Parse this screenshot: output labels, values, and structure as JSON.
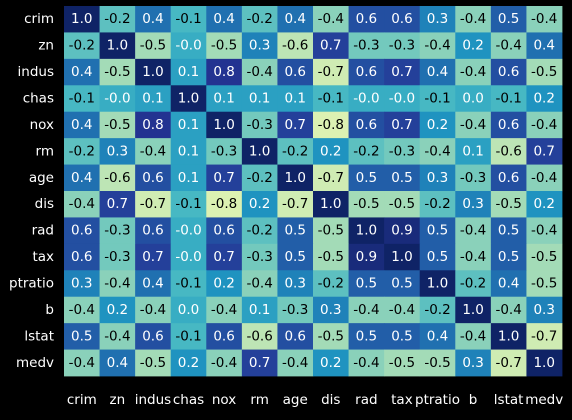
{
  "chart_data": {
    "type": "heatmap",
    "title": "",
    "xlabel": "",
    "ylabel": "",
    "x_tick_labels": [
      "crim",
      "zn",
      "indus",
      "chas",
      "nox",
      "rm",
      "age",
      "dis",
      "rad",
      "tax",
      "ptratio",
      "b",
      "lstat",
      "medv"
    ],
    "y_tick_labels": [
      "crim",
      "zn",
      "indus",
      "chas",
      "nox",
      "rm",
      "age",
      "dis",
      "rad",
      "tax",
      "ptratio",
      "b",
      "lstat",
      "medv"
    ],
    "annotation_precision": 1,
    "colorbar": false,
    "value_range": [
      -0.8,
      1.0
    ],
    "colormap": "YlGnBu",
    "colors": {
      "background": "#000000",
      "tick_text": "#ffffff",
      "annotation_text_dark_cells": "#ffffff",
      "annotation_text_light_cells": "#000000"
    },
    "matrix": [
      [
        1.0,
        -0.2,
        0.4,
        -0.1,
        0.4,
        -0.2,
        0.4,
        -0.4,
        0.6,
        0.6,
        0.3,
        -0.4,
        0.5,
        -0.4
      ],
      [
        -0.2,
        1.0,
        -0.5,
        -0.0,
        -0.5,
        0.3,
        -0.6,
        0.7,
        -0.3,
        -0.3,
        -0.4,
        0.2,
        -0.4,
        0.4
      ],
      [
        0.4,
        -0.5,
        1.0,
        0.1,
        0.8,
        -0.4,
        0.6,
        -0.7,
        0.6,
        0.7,
        0.4,
        -0.4,
        0.6,
        -0.5
      ],
      [
        -0.1,
        -0.0,
        0.1,
        1.0,
        0.1,
        0.1,
        0.1,
        -0.1,
        -0.0,
        -0.0,
        -0.1,
        0.0,
        -0.1,
        0.2
      ],
      [
        0.4,
        -0.5,
        0.8,
        0.1,
        1.0,
        -0.3,
        0.7,
        -0.8,
        0.6,
        0.7,
        0.2,
        -0.4,
        0.6,
        -0.4
      ],
      [
        -0.2,
        0.3,
        -0.4,
        0.1,
        -0.3,
        1.0,
        -0.2,
        0.2,
        -0.2,
        -0.3,
        -0.4,
        0.1,
        -0.6,
        0.7
      ],
      [
        0.4,
        -0.6,
        0.6,
        0.1,
        0.7,
        -0.2,
        1.0,
        -0.7,
        0.5,
        0.5,
        0.3,
        -0.3,
        0.6,
        -0.4
      ],
      [
        -0.4,
        0.7,
        -0.7,
        -0.1,
        -0.8,
        0.2,
        -0.7,
        1.0,
        -0.5,
        -0.5,
        -0.2,
        0.3,
        -0.5,
        0.2
      ],
      [
        0.6,
        -0.3,
        0.6,
        -0.0,
        0.6,
        -0.2,
        0.5,
        -0.5,
        1.0,
        0.9,
        0.5,
        -0.4,
        0.5,
        -0.4
      ],
      [
        0.6,
        -0.3,
        0.7,
        -0.0,
        0.7,
        -0.3,
        0.5,
        -0.5,
        0.9,
        1.0,
        0.5,
        -0.4,
        0.5,
        -0.5
      ],
      [
        0.3,
        -0.4,
        0.4,
        -0.1,
        0.2,
        -0.4,
        0.3,
        -0.2,
        0.5,
        0.5,
        1.0,
        -0.2,
        0.4,
        -0.5
      ],
      [
        -0.4,
        0.2,
        -0.4,
        0.0,
        -0.4,
        0.1,
        -0.3,
        0.3,
        -0.4,
        -0.4,
        -0.2,
        1.0,
        -0.4,
        0.3
      ],
      [
        0.5,
        -0.4,
        0.6,
        -0.1,
        0.6,
        -0.6,
        0.6,
        -0.5,
        0.5,
        0.5,
        0.4,
        -0.4,
        1.0,
        -0.7
      ],
      [
        -0.4,
        0.4,
        -0.5,
        0.2,
        -0.4,
        0.7,
        -0.4,
        0.2,
        -0.4,
        -0.5,
        -0.5,
        0.3,
        -0.7,
        1.0
      ]
    ]
  }
}
